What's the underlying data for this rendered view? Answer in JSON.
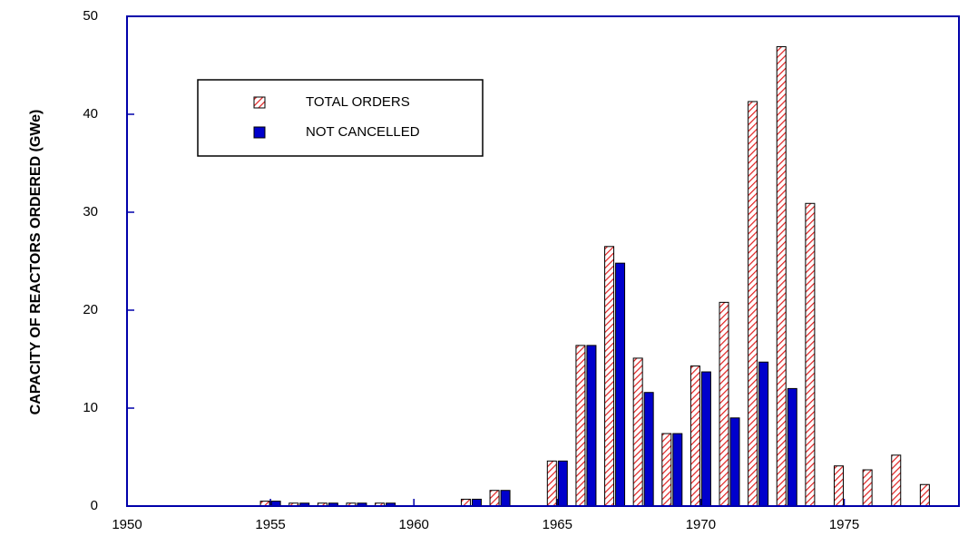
{
  "chart_data": {
    "type": "bar",
    "y_label": "CAPACITY OF REACTORS ORDERED (GWe)",
    "x": [
      1955,
      1956,
      1957,
      1958,
      1959,
      1962,
      1963,
      1965,
      1966,
      1967,
      1968,
      1969,
      1970,
      1971,
      1972,
      1973,
      1974,
      1975,
      1976,
      1977,
      1978
    ],
    "series": [
      {
        "name": "TOTAL ORDERS",
        "color": "#e02020",
        "hatch": true,
        "values": [
          0.5,
          0.3,
          0.3,
          0.3,
          0.3,
          0.7,
          1.6,
          4.6,
          16.4,
          26.5,
          15.1,
          7.4,
          14.3,
          20.8,
          41.3,
          46.9,
          30.9,
          4.1,
          3.7,
          5.2,
          2.2
        ]
      },
      {
        "name": "NOT CANCELLED",
        "color": "#0000cc",
        "hatch": false,
        "values": [
          0.5,
          0.3,
          0.3,
          0.3,
          0.3,
          0.7,
          1.6,
          4.6,
          16.4,
          24.8,
          11.6,
          7.4,
          13.7,
          9.0,
          14.7,
          12.0,
          0,
          0,
          0,
          0,
          0
        ]
      }
    ],
    "xlim": [
      1950,
      1979
    ],
    "xticks": [
      1950,
      1955,
      1960,
      1965,
      1970,
      1975
    ],
    "ylim": [
      0,
      50
    ],
    "yticks": [
      0,
      10,
      20,
      30,
      40,
      50
    ],
    "axis_color": "#0000aa",
    "legend": "upper left"
  }
}
